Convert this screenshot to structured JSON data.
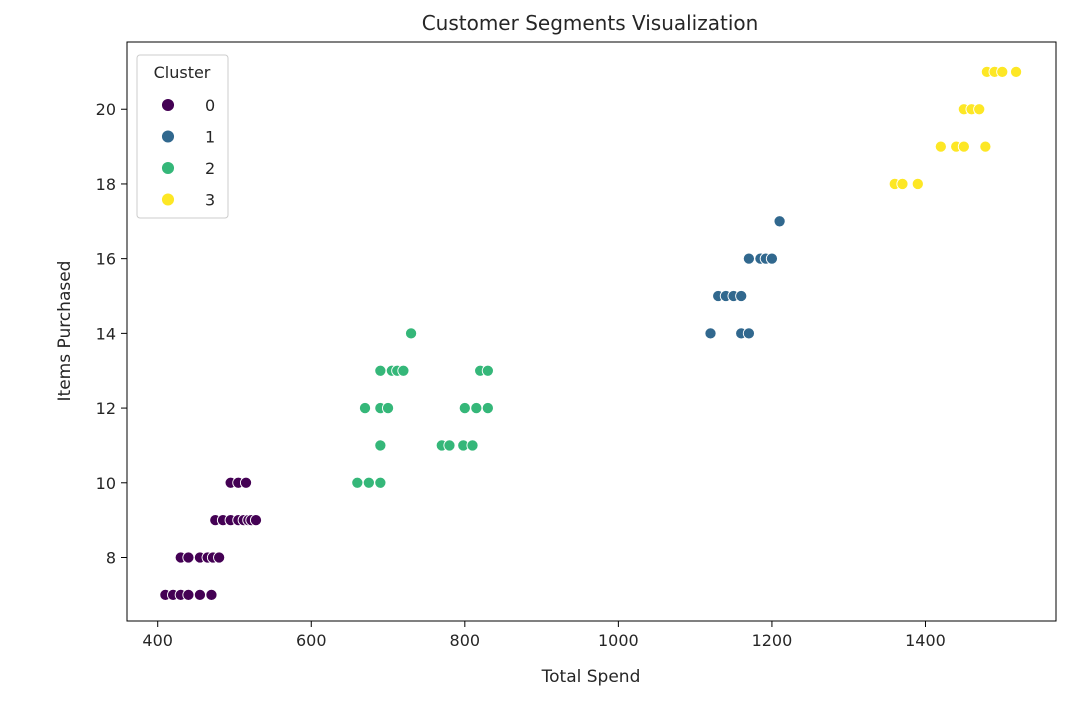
{
  "chart_data": {
    "type": "scatter",
    "title": "Customer Segments Visualization",
    "xlabel": "Total Spend",
    "ylabel": "Items Purchased",
    "xlim": [
      360,
      1570
    ],
    "ylim": [
      6.3,
      21.8
    ],
    "xticks": [
      400,
      600,
      800,
      1000,
      1200,
      1400
    ],
    "yticks": [
      8,
      10,
      12,
      14,
      16,
      18,
      20
    ],
    "grid": false,
    "legend": {
      "title": "Cluster",
      "placement": "top-left"
    },
    "series": [
      {
        "name": "0",
        "color": "#440154",
        "points": [
          [
            410,
            7
          ],
          [
            420,
            7
          ],
          [
            430,
            7
          ],
          [
            440,
            7
          ],
          [
            455,
            7
          ],
          [
            470,
            7
          ],
          [
            430,
            8
          ],
          [
            440,
            8
          ],
          [
            455,
            8
          ],
          [
            465,
            8
          ],
          [
            472,
            8
          ],
          [
            480,
            8
          ],
          [
            475,
            9
          ],
          [
            485,
            9
          ],
          [
            495,
            9
          ],
          [
            505,
            9
          ],
          [
            512,
            9
          ],
          [
            518,
            9
          ],
          [
            522,
            9
          ],
          [
            528,
            9
          ],
          [
            495,
            10
          ],
          [
            505,
            10
          ],
          [
            515,
            10
          ]
        ]
      },
      {
        "name": "1",
        "color": "#31688e",
        "points": [
          [
            1120,
            14
          ],
          [
            1160,
            14
          ],
          [
            1170,
            14
          ],
          [
            1130,
            15
          ],
          [
            1140,
            15
          ],
          [
            1150,
            15
          ],
          [
            1160,
            15
          ],
          [
            1170,
            16
          ],
          [
            1185,
            16
          ],
          [
            1192,
            16
          ],
          [
            1200,
            16
          ],
          [
            1210,
            17
          ]
        ]
      },
      {
        "name": "2",
        "color": "#35b779",
        "points": [
          [
            660,
            10
          ],
          [
            675,
            10
          ],
          [
            690,
            10
          ],
          [
            690,
            11
          ],
          [
            770,
            11
          ],
          [
            780,
            11
          ],
          [
            798,
            11
          ],
          [
            810,
            11
          ],
          [
            670,
            12
          ],
          [
            690,
            12
          ],
          [
            700,
            12
          ],
          [
            800,
            12
          ],
          [
            815,
            12
          ],
          [
            830,
            12
          ],
          [
            690,
            13
          ],
          [
            705,
            13
          ],
          [
            712,
            13
          ],
          [
            720,
            13
          ],
          [
            820,
            13
          ],
          [
            830,
            13
          ],
          [
            730,
            14
          ]
        ]
      },
      {
        "name": "3",
        "color": "#fde725",
        "points": [
          [
            1360,
            18
          ],
          [
            1370,
            18
          ],
          [
            1390,
            18
          ],
          [
            1420,
            19
          ],
          [
            1440,
            19
          ],
          [
            1450,
            19
          ],
          [
            1478,
            19
          ],
          [
            1450,
            20
          ],
          [
            1460,
            20
          ],
          [
            1470,
            20
          ],
          [
            1480,
            21
          ],
          [
            1490,
            21
          ],
          [
            1500,
            21
          ],
          [
            1518,
            21
          ]
        ]
      }
    ]
  }
}
